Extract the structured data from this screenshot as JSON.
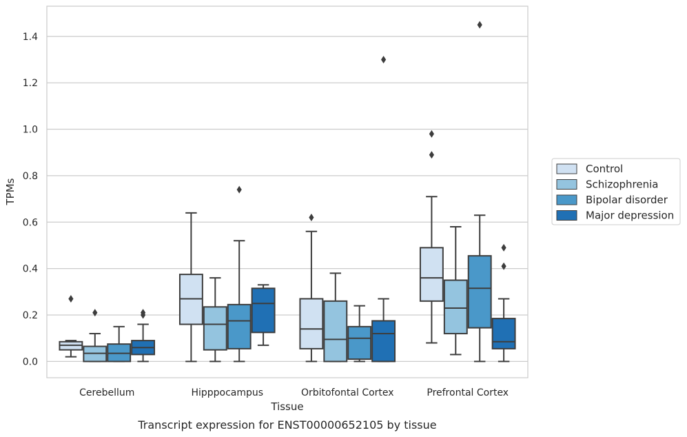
{
  "caption": "Transcript expression for ENST00000652105 by tissue",
  "chart_data": {
    "type": "box",
    "title": "",
    "xlabel": "Tissue",
    "ylabel": "TPMs",
    "ylim": [
      -0.07,
      1.53
    ],
    "yticks": [
      0.0,
      0.2,
      0.4,
      0.6,
      0.8,
      1.0,
      1.2,
      1.4
    ],
    "ytick_labels": [
      "0.0",
      "0.2",
      "0.4",
      "0.6",
      "0.8",
      "1.0",
      "1.2",
      "1.4"
    ],
    "grid": "horizontal",
    "legend_position": "outside-right",
    "categories": [
      "Cerebellum",
      "Hipppocampus",
      "Orbitofontal Cortex",
      "Prefrontal Cortex"
    ],
    "series": [
      {
        "name": "Control",
        "color": "#d0e1f2",
        "boxes": [
          {
            "whislo": 0.02,
            "q1": 0.05,
            "median": 0.07,
            "q3": 0.085,
            "whishi": 0.09,
            "fliers": [
              0.27
            ]
          },
          {
            "whislo": 0.0,
            "q1": 0.16,
            "median": 0.27,
            "q3": 0.375,
            "whishi": 0.64,
            "fliers": []
          },
          {
            "whislo": 0.0,
            "q1": 0.055,
            "median": 0.14,
            "q3": 0.27,
            "whishi": 0.56,
            "fliers": [
              0.62
            ]
          },
          {
            "whislo": 0.08,
            "q1": 0.26,
            "median": 0.36,
            "q3": 0.49,
            "whishi": 0.71,
            "fliers": [
              0.89,
              0.98
            ]
          }
        ]
      },
      {
        "name": "Schizophrenia",
        "color": "#94c4df",
        "boxes": [
          {
            "whislo": 0.0,
            "q1": 0.0,
            "median": 0.035,
            "q3": 0.065,
            "whishi": 0.12,
            "fliers": [
              0.21
            ]
          },
          {
            "whislo": 0.0,
            "q1": 0.05,
            "median": 0.16,
            "q3": 0.235,
            "whishi": 0.36,
            "fliers": []
          },
          {
            "whislo": 0.0,
            "q1": 0.0,
            "median": 0.095,
            "q3": 0.26,
            "whishi": 0.38,
            "fliers": []
          },
          {
            "whislo": 0.03,
            "q1": 0.12,
            "median": 0.23,
            "q3": 0.35,
            "whishi": 0.58,
            "fliers": []
          }
        ]
      },
      {
        "name": "Bipolar disorder",
        "color": "#4a98c9",
        "boxes": [
          {
            "whislo": 0.0,
            "q1": 0.0,
            "median": 0.035,
            "q3": 0.075,
            "whishi": 0.15,
            "fliers": []
          },
          {
            "whislo": 0.0,
            "q1": 0.055,
            "median": 0.175,
            "q3": 0.245,
            "whishi": 0.52,
            "fliers": [
              0.74
            ]
          },
          {
            "whislo": 0.0,
            "q1": 0.01,
            "median": 0.1,
            "q3": 0.15,
            "whishi": 0.24,
            "fliers": []
          },
          {
            "whislo": 0.0,
            "q1": 0.145,
            "median": 0.315,
            "q3": 0.455,
            "whishi": 0.63,
            "fliers": [
              1.45
            ]
          }
        ]
      },
      {
        "name": "Major depression",
        "color": "#2070b4",
        "boxes": [
          {
            "whislo": 0.0,
            "q1": 0.03,
            "median": 0.06,
            "q3": 0.09,
            "whishi": 0.16,
            "fliers": [
              0.2,
              0.21
            ]
          },
          {
            "whislo": 0.07,
            "q1": 0.125,
            "median": 0.25,
            "q3": 0.315,
            "whishi": 0.33,
            "fliers": []
          },
          {
            "whislo": 0.0,
            "q1": 0.0,
            "median": 0.12,
            "q3": 0.175,
            "whishi": 0.27,
            "fliers": [
              1.3
            ]
          },
          {
            "whislo": 0.0,
            "q1": 0.055,
            "median": 0.085,
            "q3": 0.185,
            "whishi": 0.27,
            "fliers": [
              0.41,
              0.49
            ]
          }
        ]
      }
    ]
  }
}
